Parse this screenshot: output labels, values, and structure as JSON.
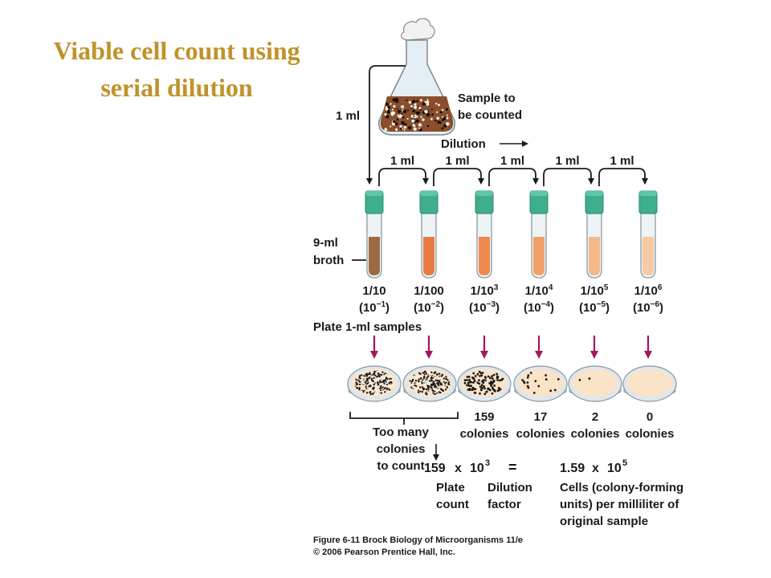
{
  "title": {
    "line1": "Viable cell count using",
    "line2": "serial dilution"
  },
  "flask": {
    "label_line1": "Sample to",
    "label_line2": "be counted"
  },
  "first_transfer": "1 ml",
  "dilution_label": "Dilution",
  "transfers": [
    "1 ml",
    "1 ml",
    "1 ml",
    "1 ml",
    "1 ml"
  ],
  "broth_label": {
    "line1": "9-ml",
    "line2": "broth"
  },
  "tubes": [
    {
      "fraction_base": "1/10",
      "fraction_exp": "",
      "paren_base": "(10",
      "paren_exp": "−1",
      "paren_close": ")",
      "fill": "#9a6a45"
    },
    {
      "fraction_base": "1/100",
      "fraction_exp": "",
      "paren_base": "(10",
      "paren_exp": "−2",
      "paren_close": ")",
      "fill": "#e97a42"
    },
    {
      "fraction_base": "1/10",
      "fraction_exp": "3",
      "paren_base": "(10",
      "paren_exp": "−3",
      "paren_close": ")",
      "fill": "#ef8a50"
    },
    {
      "fraction_base": "1/10",
      "fraction_exp": "4",
      "paren_base": "(10",
      "paren_exp": "−4",
      "paren_close": ")",
      "fill": "#f3a068"
    },
    {
      "fraction_base": "1/10",
      "fraction_exp": "5",
      "paren_base": "(10",
      "paren_exp": "−5",
      "paren_close": ")",
      "fill": "#f6b889"
    },
    {
      "fraction_base": "1/10",
      "fraction_exp": "6",
      "paren_base": "(10",
      "paren_exp": "−6",
      "paren_close": ")",
      "fill": "#f8c9a3"
    }
  ],
  "plate_label": "Plate 1-ml samples",
  "plates": [
    {
      "count": "",
      "caption": ""
    },
    {
      "count": "",
      "caption": ""
    },
    {
      "count": "159",
      "caption": "colonies"
    },
    {
      "count": "17",
      "caption": "colonies"
    },
    {
      "count": "2",
      "caption": "colonies"
    },
    {
      "count": "0",
      "caption": "colonies"
    }
  ],
  "too_many": {
    "line1": "Too many",
    "line2": "colonies",
    "line3": "to count"
  },
  "equation": {
    "count": "159",
    "times1": "x",
    "dilution_base": "10",
    "dilution_exp": "3",
    "equals": "=",
    "result": "1.59",
    "times2": "x",
    "result_base": "10",
    "result_exp": "5"
  },
  "equation_labels": {
    "plate_line1": "Plate",
    "plate_line2": "count",
    "dilution_line1": "Dilution",
    "dilution_line2": "factor",
    "cells_line1": "Cells (colony-forming",
    "cells_line2": "units) per milliliter of",
    "cells_line3": "original sample"
  },
  "credit": {
    "line1": "Figure 6-11 Brock Biology of Microorganisms 11/e",
    "line2": "© 2006 Pearson Prentice Hall, Inc."
  },
  "colors": {
    "title": "#c0922a",
    "cap": "#3fae8e",
    "arrow": "#a3175c",
    "line": "#1a1a1a",
    "plate_agar": "#fbe3c8"
  }
}
